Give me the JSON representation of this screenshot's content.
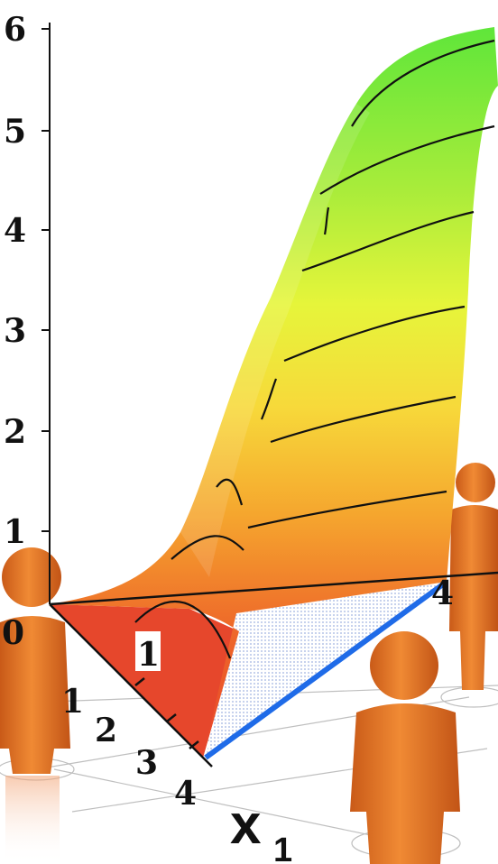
{
  "chart_data": {
    "type": "surface-3d",
    "title": "",
    "z_axis": {
      "range": [
        0,
        6
      ],
      "ticks": [
        "0",
        "1",
        "2",
        "3",
        "4",
        "5",
        "6"
      ]
    },
    "x1_axis": {
      "label_main": "x",
      "label_sub": "1",
      "ticks": [
        "1",
        "2",
        "3",
        "4"
      ]
    },
    "x2_axis": {
      "ticks": [
        "1",
        "4"
      ]
    },
    "contour_levels": [
      0.5,
      1,
      2,
      3,
      4,
      5
    ],
    "colormap": [
      "#e8432a",
      "#f07a2a",
      "#f5a52e",
      "#f5d23a",
      "#f7f43a",
      "#b6ee3a",
      "#62e83a"
    ],
    "colors": {
      "person": "#e8782a",
      "constraint_line": "#1f6be8",
      "feasible_region": "#cfd8f0",
      "contour": "#111111"
    },
    "decoration": "four orange person silhouettes standing on a network of circles"
  }
}
